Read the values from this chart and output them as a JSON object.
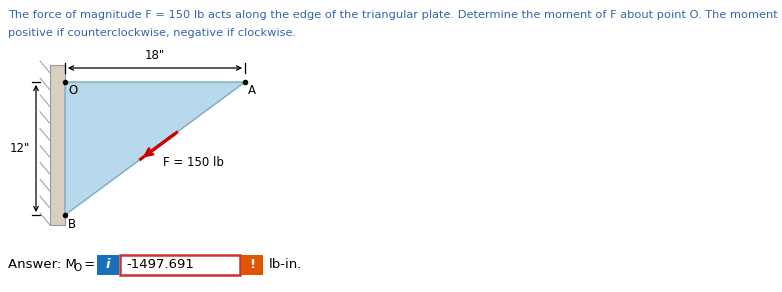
{
  "title_line1": "The force of magnitude F = 150 lb acts along the edge of the triangular plate. Determine the moment of F about point O. The moment is",
  "title_line2": "positive if counterclockwise, negative if clockwise.",
  "triangle_color": "#b8d9ec",
  "triangle_edge_color": "#7aaabe",
  "wall_fill_color": "#d8cfc0",
  "wall_edge_color": "#999999",
  "force_color": "#cc0000",
  "force_label": "F = 150 lb",
  "dim_18_label": "18\"",
  "dim_12_label": "12\"",
  "answer_label": "Answer: M",
  "answer_sub": "O",
  "answer_eq": " =",
  "answer_value": "-1497.691",
  "answer_unit": "lb-in.",
  "blue_btn_color": "#1a6fbd",
  "orange_btn_color": "#e05500",
  "answer_box_border": "#cc3333",
  "background_color": "#ffffff",
  "text_color": "#3366aa",
  "label_color": "#000000",
  "O_label": "O",
  "A_label": "A",
  "B_label": "B"
}
